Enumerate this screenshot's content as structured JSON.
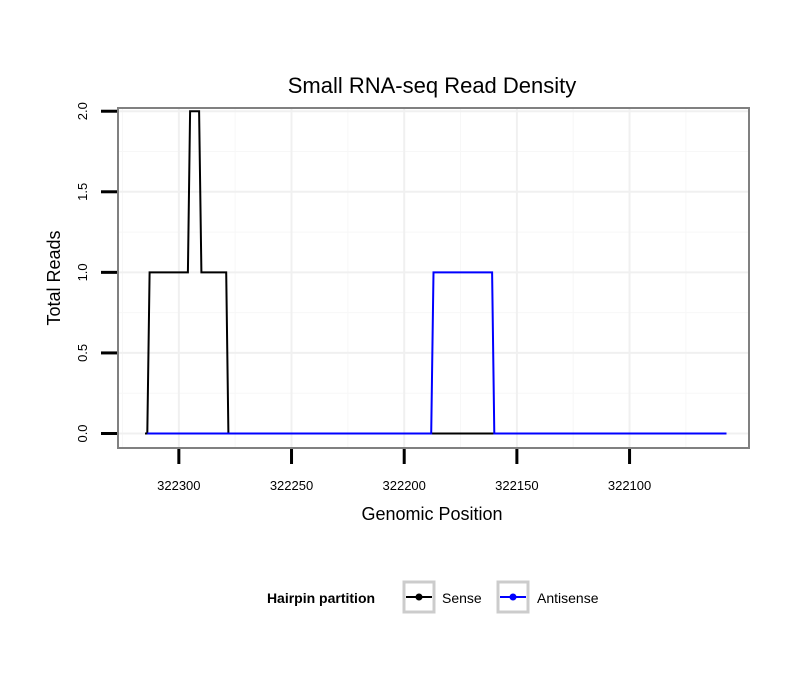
{
  "chart_data": {
    "type": "line",
    "title": "Small RNA-seq Read Density",
    "xlabel": "Genomic Position",
    "ylabel": "Total Reads",
    "x_reversed": true,
    "xlim": [
      322327,
      322047
    ],
    "ylim": [
      -0.09,
      2.02
    ],
    "x_ticks": [
      322300,
      322250,
      322200,
      322150,
      322100
    ],
    "x_tick_labels": [
      "322300",
      "322250",
      "322200",
      "322150",
      "322100"
    ],
    "y_ticks": [
      0,
      0.5,
      1,
      1.5,
      2
    ],
    "y_tick_labels": [
      "0.0",
      "0.5",
      "1.0",
      "1.5",
      "2.0"
    ],
    "grid": true,
    "legend": {
      "title": "Hairpin partition",
      "position": "bottom"
    },
    "series": [
      {
        "name": "Sense",
        "color": "#000000",
        "x": [
          322315,
          322314,
          322313,
          322296,
          322295,
          322291,
          322290,
          322279,
          322278,
          322057
        ],
        "y": [
          0,
          0,
          1,
          1,
          2,
          2,
          1,
          1,
          0,
          0
        ]
      },
      {
        "name": "Antisense",
        "color": "#0000ff",
        "x": [
          322314,
          322188,
          322187,
          322161,
          322160,
          322057
        ],
        "y": [
          0,
          0,
          1,
          1,
          0,
          0
        ]
      }
    ]
  }
}
